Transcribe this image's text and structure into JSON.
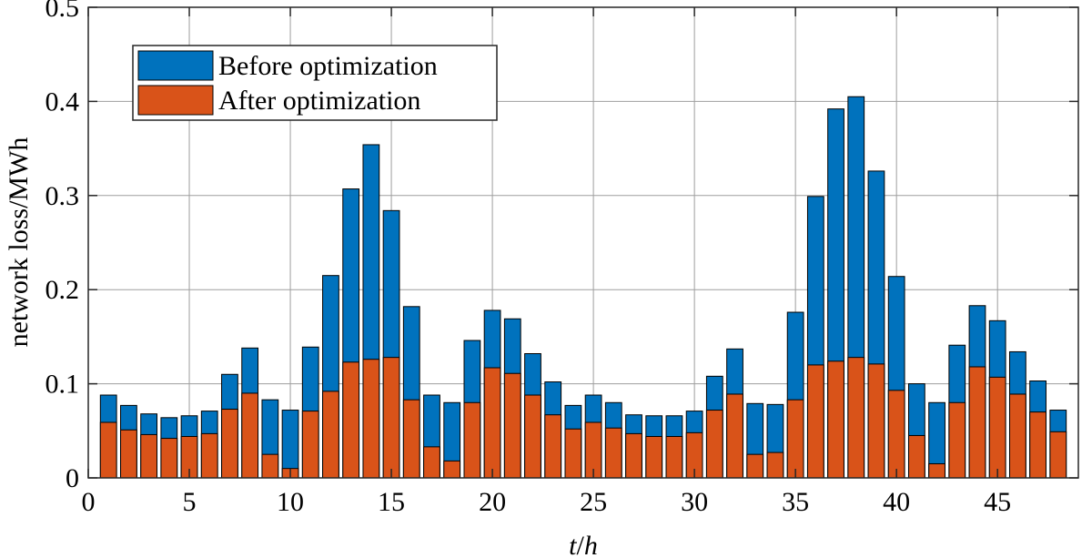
{
  "chart_data": {
    "type": "bar",
    "stacked": true,
    "title": "",
    "xlabel_italic": "t",
    "xlabel_rest": "/",
    "xlabel_italic2": "h",
    "ylabel": "network loss/MWh",
    "xlim": [
      0,
      49
    ],
    "ylim": [
      0,
      0.5
    ],
    "xticks": [
      0,
      5,
      10,
      15,
      20,
      25,
      30,
      35,
      40,
      45
    ],
    "yticks": [
      0,
      0.1,
      0.2,
      0.3,
      0.4,
      0.5
    ],
    "ytick_labels": [
      "0",
      "0.1",
      "0.2",
      "0.3",
      "0.4",
      "0.5"
    ],
    "grid": true,
    "legend_position": "top-left",
    "x": [
      1,
      2,
      3,
      4,
      5,
      6,
      7,
      8,
      9,
      10,
      11,
      12,
      13,
      14,
      15,
      16,
      17,
      18,
      19,
      20,
      21,
      22,
      23,
      24,
      25,
      26,
      27,
      28,
      29,
      30,
      31,
      32,
      33,
      34,
      35,
      36,
      37,
      38,
      39,
      40,
      41,
      42,
      43,
      44,
      45,
      46,
      47,
      48
    ],
    "series": [
      {
        "name": "Before optimization",
        "color": "#0072BD",
        "values": [
          0.088,
          0.077,
          0.068,
          0.064,
          0.066,
          0.071,
          0.11,
          0.138,
          0.083,
          0.072,
          0.139,
          0.215,
          0.307,
          0.354,
          0.284,
          0.182,
          0.088,
          0.08,
          0.146,
          0.178,
          0.169,
          0.132,
          0.102,
          0.077,
          0.088,
          0.08,
          0.067,
          0.066,
          0.066,
          0.071,
          0.108,
          0.137,
          0.079,
          0.078,
          0.176,
          0.299,
          0.392,
          0.405,
          0.326,
          0.214,
          0.1,
          0.08,
          0.141,
          0.183,
          0.167,
          0.134,
          0.103,
          0.072
        ]
      },
      {
        "name": "After optimization",
        "color": "#D95319",
        "values": [
          0.059,
          0.051,
          0.046,
          0.042,
          0.044,
          0.047,
          0.073,
          0.09,
          0.025,
          0.01,
          0.071,
          0.092,
          0.123,
          0.126,
          0.128,
          0.083,
          0.033,
          0.018,
          0.08,
          0.117,
          0.111,
          0.088,
          0.067,
          0.052,
          0.059,
          0.053,
          0.047,
          0.044,
          0.044,
          0.048,
          0.072,
          0.089,
          0.025,
          0.027,
          0.083,
          0.12,
          0.124,
          0.128,
          0.121,
          0.093,
          0.045,
          0.015,
          0.08,
          0.118,
          0.107,
          0.089,
          0.07,
          0.049
        ]
      }
    ]
  }
}
